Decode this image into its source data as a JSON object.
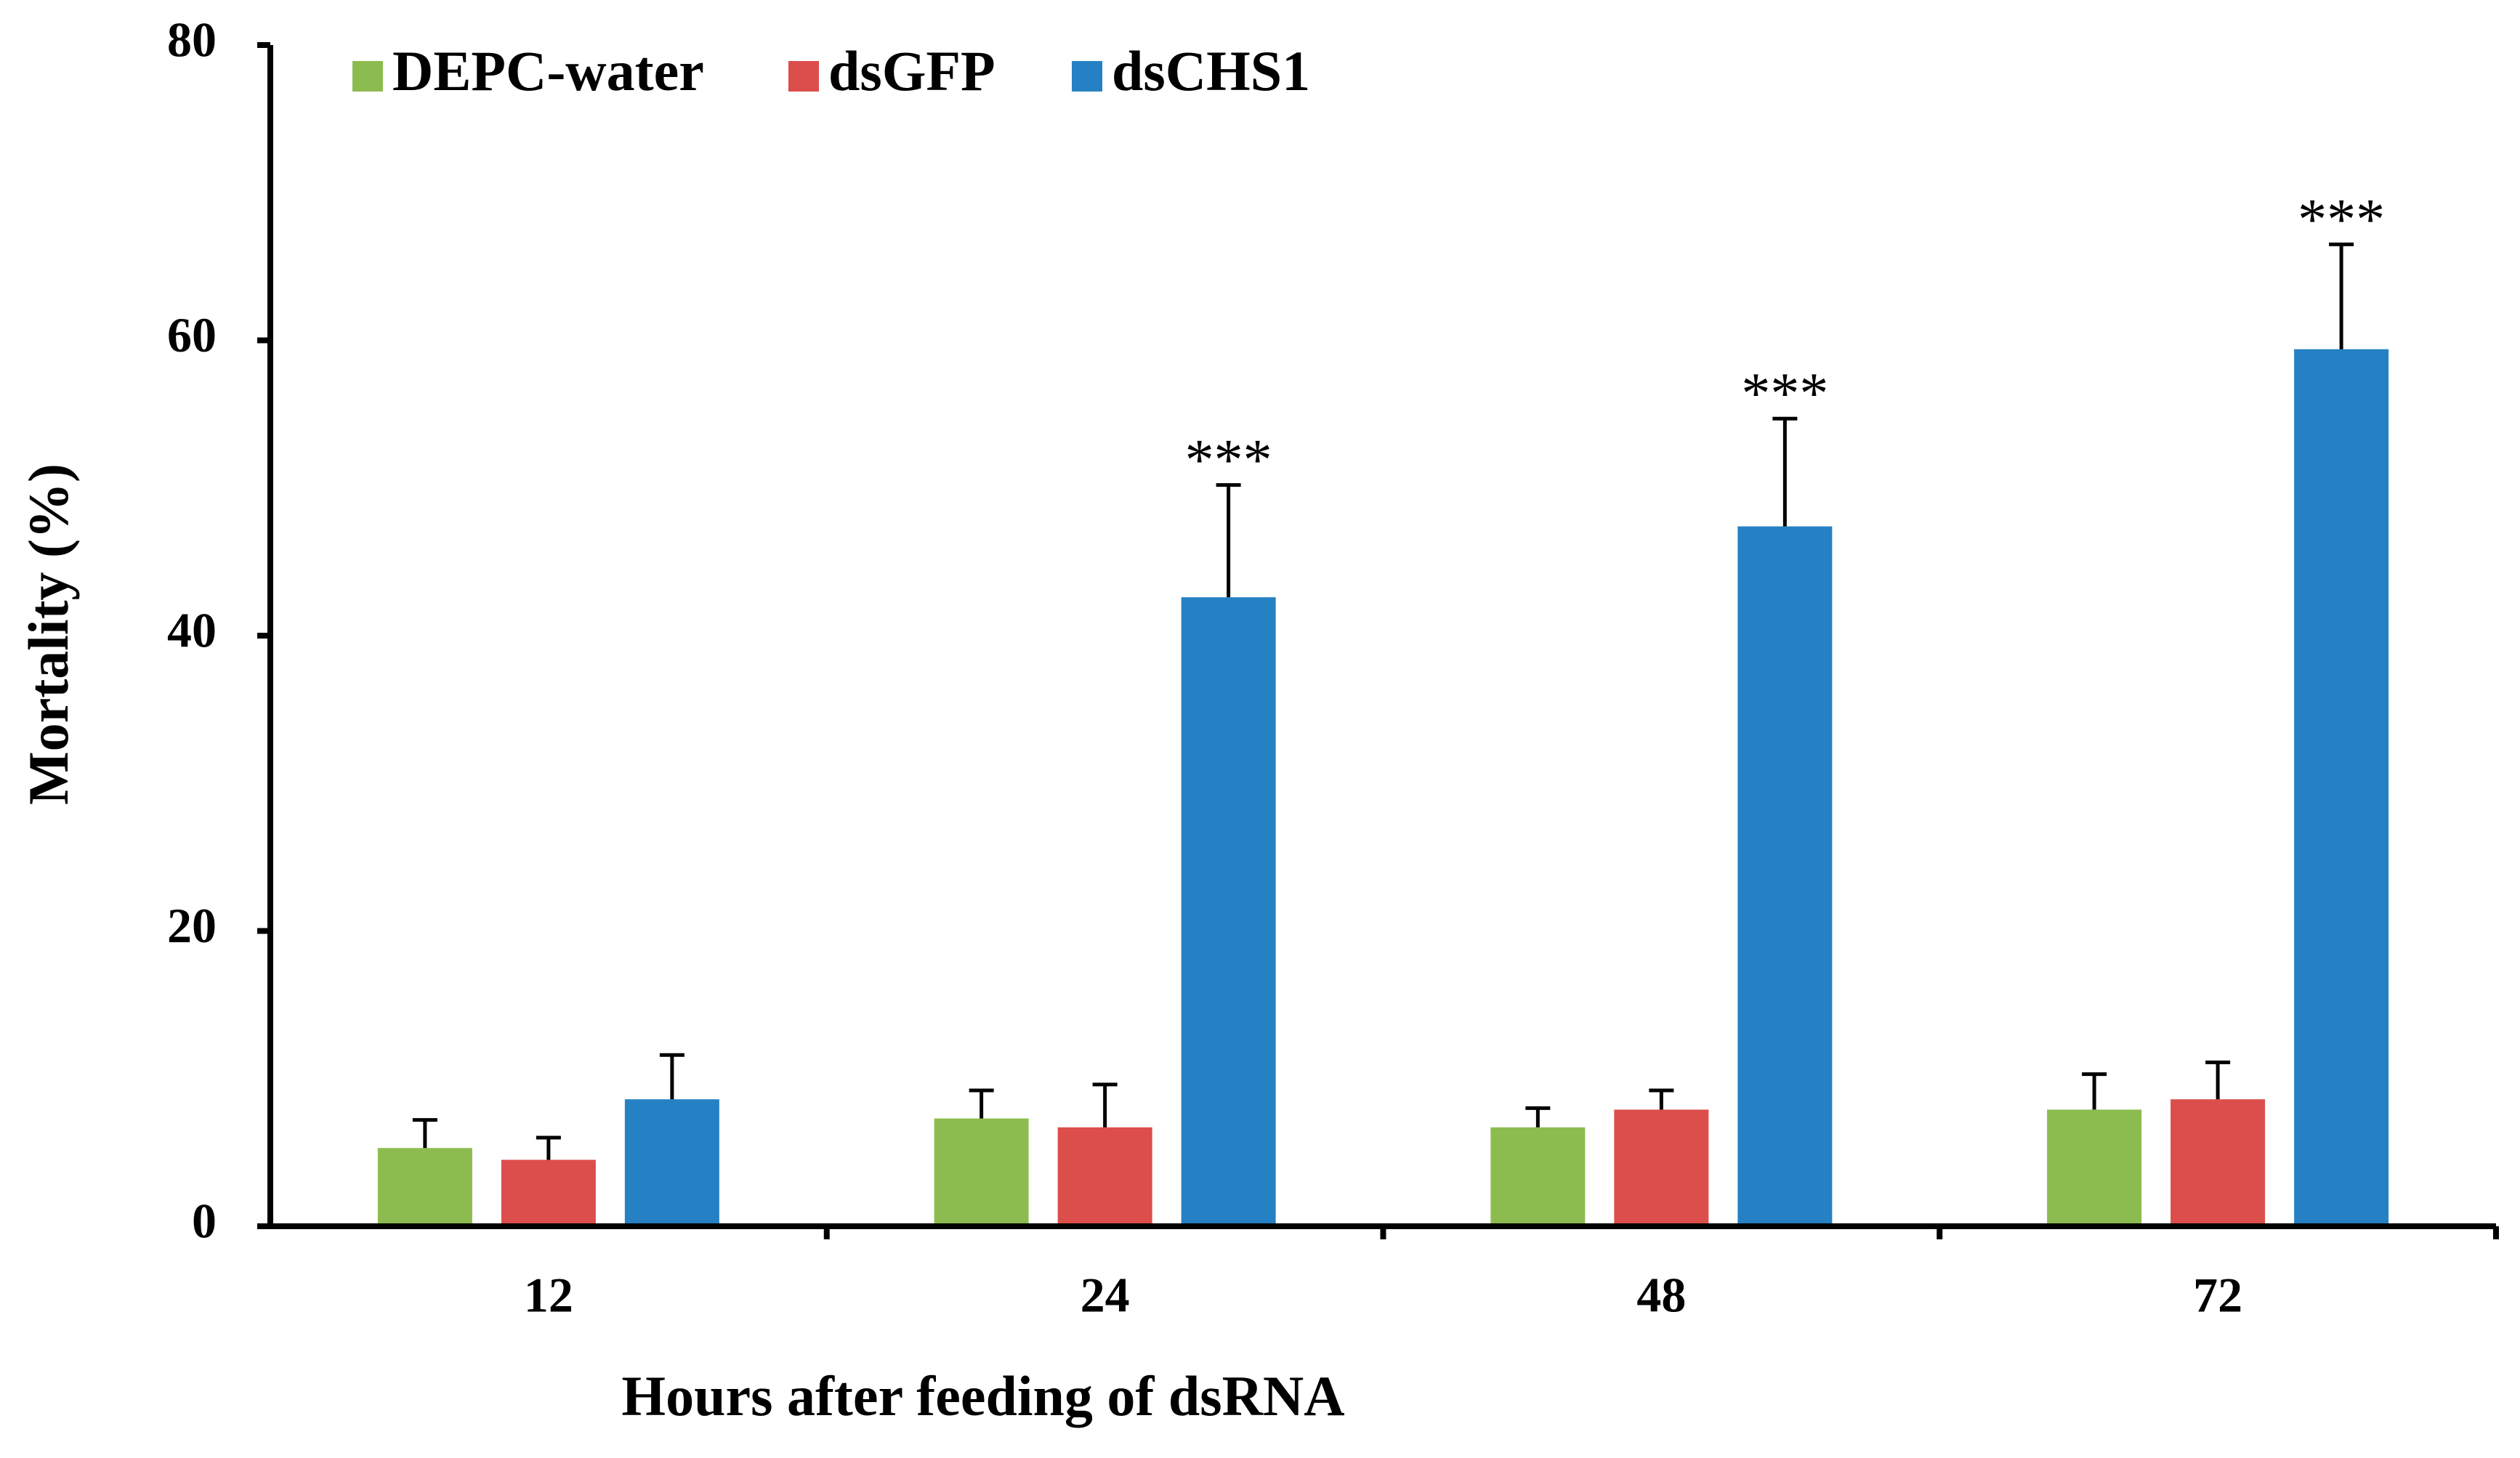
{
  "chart_data": {
    "type": "bar",
    "title": "",
    "xlabel": "Hours after feeding of dsRNA",
    "ylabel": "Mortality (%)",
    "categories": [
      "12",
      "24",
      "48",
      "72"
    ],
    "ylim": [
      0,
      80
    ],
    "yticks": [
      "0",
      "20",
      "40",
      "60",
      "80"
    ],
    "grid": false,
    "legend_position": "top-left",
    "series": [
      {
        "name": "DEPC-water",
        "color": "#8cbc4f",
        "values": [
          5.3,
          7.3,
          6.7,
          7.9
        ],
        "errors": [
          1.9,
          1.9,
          1.3,
          2.4
        ],
        "annotations": [
          "",
          "",
          "",
          ""
        ]
      },
      {
        "name": "dsGFP",
        "color": "#dc4e4b",
        "values": [
          4.5,
          6.7,
          7.9,
          8.6
        ],
        "errors": [
          1.5,
          2.9,
          1.3,
          2.5
        ],
        "annotations": [
          "",
          "",
          "",
          ""
        ]
      },
      {
        "name": "dsCHS1",
        "color": "#2581c3",
        "values": [
          8.6,
          42.6,
          47.4,
          59.4
        ],
        "errors": [
          3.0,
          7.6,
          7.3,
          7.1
        ],
        "annotations": [
          "",
          "***",
          "***",
          "***"
        ]
      }
    ]
  }
}
